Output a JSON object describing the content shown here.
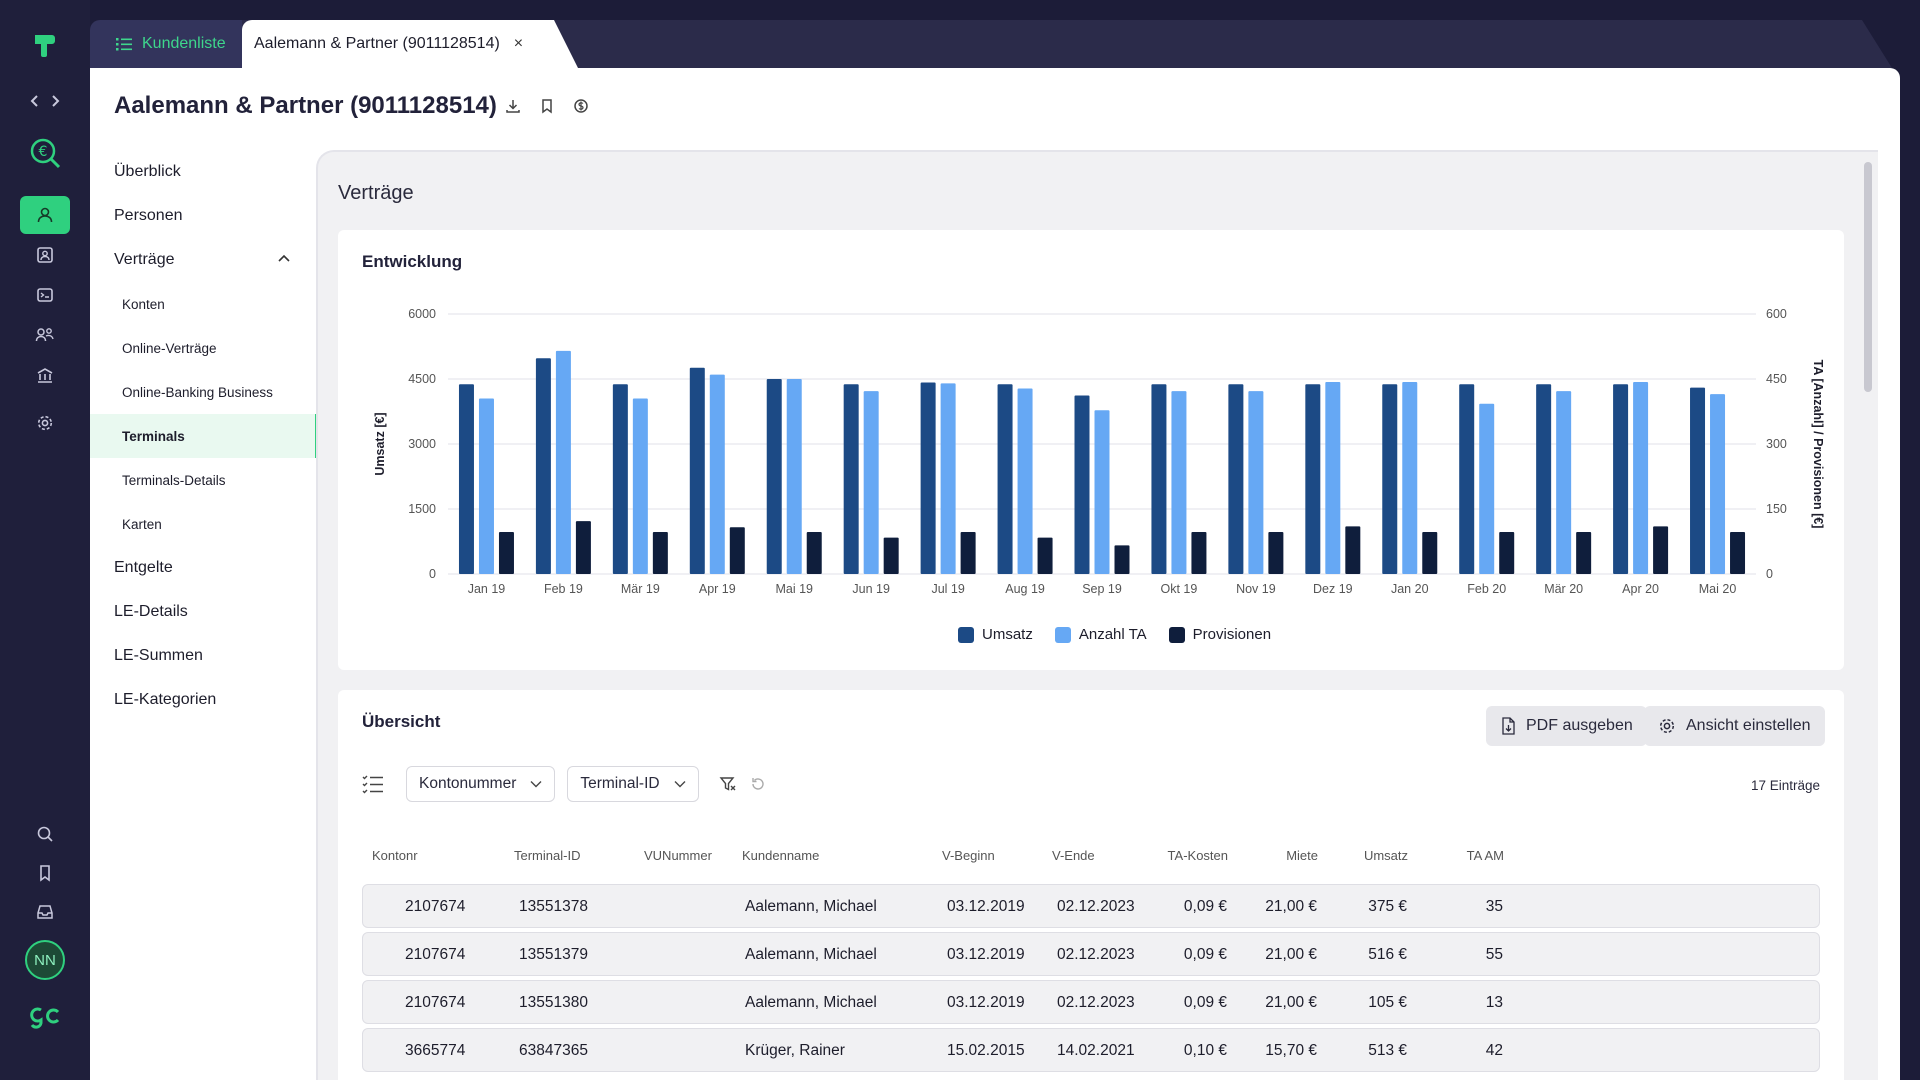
{
  "tabs": {
    "list_label": "Kundenliste",
    "active_label": "Aalemann & Partner (9011128514)",
    "close_glyph": "×"
  },
  "page": {
    "title": "Aalemann & Partner (9011128514)"
  },
  "nav": {
    "items": [
      {
        "label": "Überblick",
        "level": 1
      },
      {
        "label": "Personen",
        "level": 1
      },
      {
        "label": "Verträge",
        "level": 1
      },
      {
        "label": "Konten",
        "level": 2
      },
      {
        "label": "Online-Verträge",
        "level": 2
      },
      {
        "label": "Online-Banking Business",
        "level": 2
      },
      {
        "label": "Terminals",
        "level": 2
      },
      {
        "label": "Terminals-Details",
        "level": 2
      },
      {
        "label": "Karten",
        "level": 2
      },
      {
        "label": "Entgelte",
        "level": 1
      },
      {
        "label": "LE-Details",
        "level": 1
      },
      {
        "label": "LE-Summen",
        "level": 1
      },
      {
        "label": "LE-Kategorien",
        "level": 1
      }
    ],
    "selected": "Terminals"
  },
  "section": {
    "title": "Verträge"
  },
  "chart_card": {
    "title": "Entwicklung"
  },
  "chart_data": {
    "type": "bar",
    "categories": [
      "Jan 19",
      "Feb 19",
      "Mär 19",
      "Apr 19",
      "Mai 19",
      "Jun 19",
      "Jul 19",
      "Aug 19",
      "Sep 19",
      "Okt 19",
      "Nov 19",
      "Dez 19",
      "Jan 20",
      "Feb 20",
      "Mär 20",
      "Apr 20",
      "Mai 20"
    ],
    "ylabel": "Umsatz [€]",
    "ylabel_right": "TA [Anzahl] / Provisionen [€]",
    "ylim": [
      0,
      6000
    ],
    "ylim_right": [
      0,
      600
    ],
    "yticks": [
      "0",
      "1500",
      "3000",
      "4500",
      "6000"
    ],
    "yticks_right": [
      "0",
      "150",
      "300",
      "450",
      "600"
    ],
    "grid": true,
    "legend_position": "bottom-center",
    "series": [
      {
        "name": "Umsatz",
        "axis": "left",
        "color": "#1c4a85",
        "values": [
          4380,
          4980,
          4380,
          4760,
          4500,
          4380,
          4420,
          4380,
          4120,
          4380,
          4380,
          4380,
          4380,
          4380,
          4380,
          4380,
          4300
        ]
      },
      {
        "name": "Anzahl TA",
        "axis": "right",
        "color": "#66a8f4",
        "values": [
          405,
          515,
          405,
          460,
          450,
          422,
          440,
          428,
          378,
          422,
          422,
          443,
          443,
          393,
          422,
          443,
          415
        ]
      },
      {
        "name": "Provisionen",
        "axis": "right",
        "color": "#0f1e3c",
        "values": [
          97,
          122,
          97,
          108,
          97,
          84,
          97,
          84,
          66,
          97,
          97,
          110,
          97,
          97,
          97,
          110,
          97
        ]
      }
    ]
  },
  "table_card": {
    "title": "Übersicht",
    "pdf_button": "PDF ausgeben",
    "view_button": "Ansicht einstellen",
    "filter_kontonummer": "Kontonummer",
    "filter_terminal": "Terminal-ID",
    "count": "17 Einträge",
    "columns": [
      "Kontonr",
      "Terminal-ID",
      "VUNummer",
      "Kundenname",
      "V-Beginn",
      "V-Ende",
      "TA-Kosten",
      "Miete",
      "Umsatz",
      "TA AM"
    ],
    "rows": [
      [
        "2107674",
        "13551378",
        "",
        "Aalemann, Michael",
        "03.12.2019",
        "02.12.2023",
        "0,09 €",
        "21,00 €",
        "375 €",
        "35"
      ],
      [
        "2107674",
        "13551379",
        "",
        "Aalemann, Michael",
        "03.12.2019",
        "02.12.2023",
        "0,09 €",
        "21,00 €",
        "516 €",
        "55"
      ],
      [
        "2107674",
        "13551380",
        "",
        "Aalemann, Michael",
        "03.12.2019",
        "02.12.2023",
        "0,09 €",
        "21,00 €",
        "105 €",
        "13"
      ],
      [
        "3665774",
        "63847365",
        "",
        "Krüger, Rainer",
        "15.02.2015",
        "14.02.2021",
        "0,10 €",
        "15,70 €",
        "513 €",
        "42"
      ]
    ]
  },
  "user": {
    "initials": "NN"
  },
  "colors": {
    "accent": "#2fd07f",
    "rail": "#1f1f3b"
  }
}
